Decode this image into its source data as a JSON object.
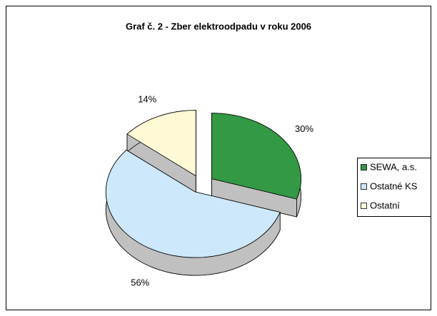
{
  "chart_data": {
    "type": "pie",
    "title": "Graf č. 2 - Zber elektroodpadu v roku 2006",
    "categories": [
      "SEWA, a.s.",
      "Ostatné KS",
      "Ostatní"
    ],
    "values": [
      30,
      56,
      14
    ],
    "value_labels": [
      "30%",
      "56%",
      "14%"
    ],
    "colors": [
      "#339944",
      "#cce8fa",
      "#fffad6"
    ],
    "legend": "right"
  }
}
